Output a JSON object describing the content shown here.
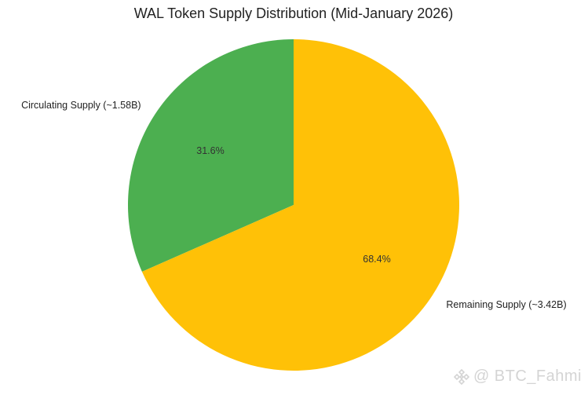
{
  "chart_data": {
    "type": "pie",
    "title": "WAL Token Supply Distribution (Mid-January 2026)",
    "slices": [
      {
        "label": "Circulating Supply (~1.58B)",
        "value": 31.6,
        "pct_label": "31.6%",
        "color": "#4caf50"
      },
      {
        "label": "Remaining Supply (~3.42B)",
        "value": 68.4,
        "pct_label": "68.4%",
        "color": "#ffc107"
      }
    ],
    "start_angle": "top",
    "direction": "counterclockwise"
  },
  "watermark": {
    "text": "@ BTC_Fahmi",
    "icon": "binance-diamond-icon",
    "color": "#d4d4d4"
  }
}
